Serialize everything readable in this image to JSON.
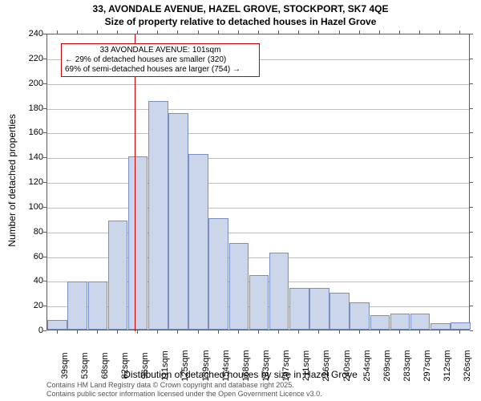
{
  "title_line1": "33, AVONDALE AVENUE, HAZEL GROVE, STOCKPORT, SK7 4QE",
  "title_line2": "Size of property relative to detached houses in Hazel Grove",
  "ylabel": "Number of detached properties",
  "xlabel": "Distribution of detached houses by size in Hazel Grove",
  "annotation": {
    "line1": "33 AVONDALE AVENUE: 101sqm",
    "line2": "← 29% of detached houses are smaller (320)",
    "line3": "69% of semi-detached houses are larger (754) →",
    "marker_category_index": 4
  },
  "footer_line1": "Contains HM Land Registry data © Crown copyright and database right 2025.",
  "footer_line2": "Contains public sector information licensed under the Open Government Licence v3.0.",
  "chart": {
    "type": "histogram",
    "ylim": [
      0,
      240
    ],
    "ytick_step": 20,
    "bar_fill": "#ccd6eb",
    "bar_border": "#7a8fbf",
    "grid_color": "#bfbfbf",
    "axis_color": "#5b5b5b",
    "marker_color": "#cc0000",
    "background_color": "#ffffff",
    "categories": [
      "39sqm",
      "53sqm",
      "68sqm",
      "82sqm",
      "96sqm",
      "111sqm",
      "125sqm",
      "139sqm",
      "154sqm",
      "168sqm",
      "183sqm",
      "197sqm",
      "211sqm",
      "226sqm",
      "240sqm",
      "254sqm",
      "269sqm",
      "283sqm",
      "297sqm",
      "312sqm",
      "326sqm"
    ],
    "values": [
      8,
      39,
      39,
      88,
      140,
      185,
      175,
      142,
      90,
      70,
      44,
      62,
      34,
      34,
      30,
      22,
      12,
      13,
      13,
      5,
      6
    ]
  }
}
